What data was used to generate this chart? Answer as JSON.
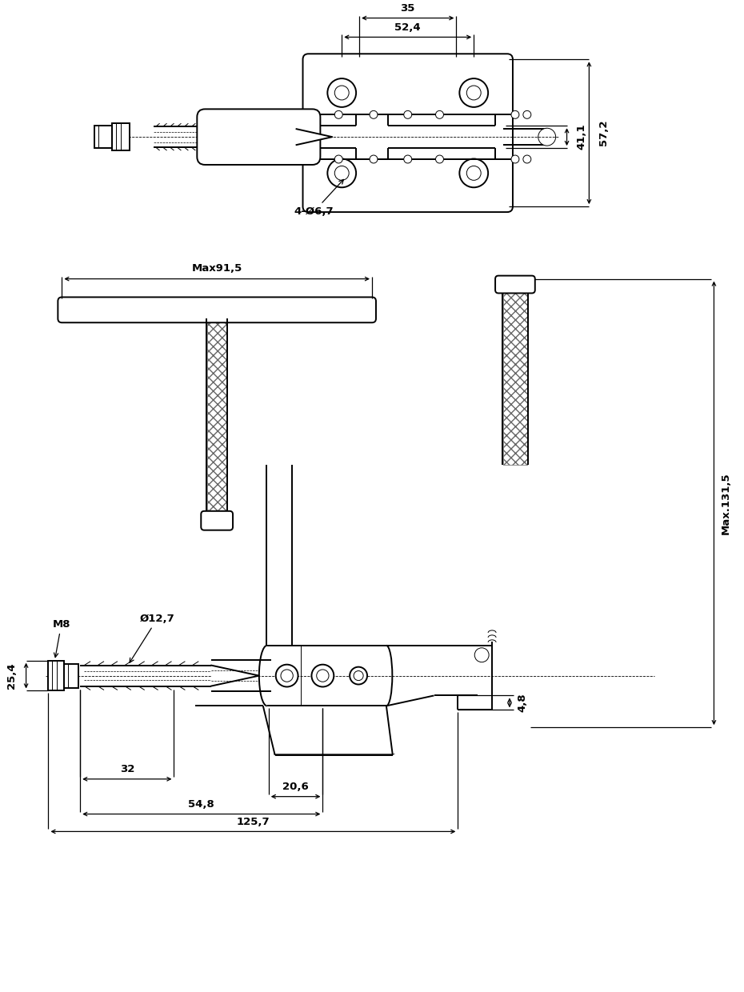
{
  "bg_color": "#ffffff",
  "lc": "#000000",
  "lw": 1.4,
  "lwt": 0.7,
  "lwd": 0.9,
  "dims_top": {
    "52_4": "52,4",
    "35": "35",
    "41_1": "41,1",
    "57_2": "57,2",
    "4_holes": "4-Ø6,7"
  },
  "dims_mid": {
    "max91_5": "Max91,5",
    "max131_5": "Max.131,5"
  },
  "dims_bot": {
    "m8": "M8",
    "dia12_7": "Ø12,7",
    "25_4": "25,4",
    "32": "32",
    "20_6": "20,6",
    "54_8": "54,8",
    "4_8": "4,8",
    "125_7": "125,7"
  }
}
